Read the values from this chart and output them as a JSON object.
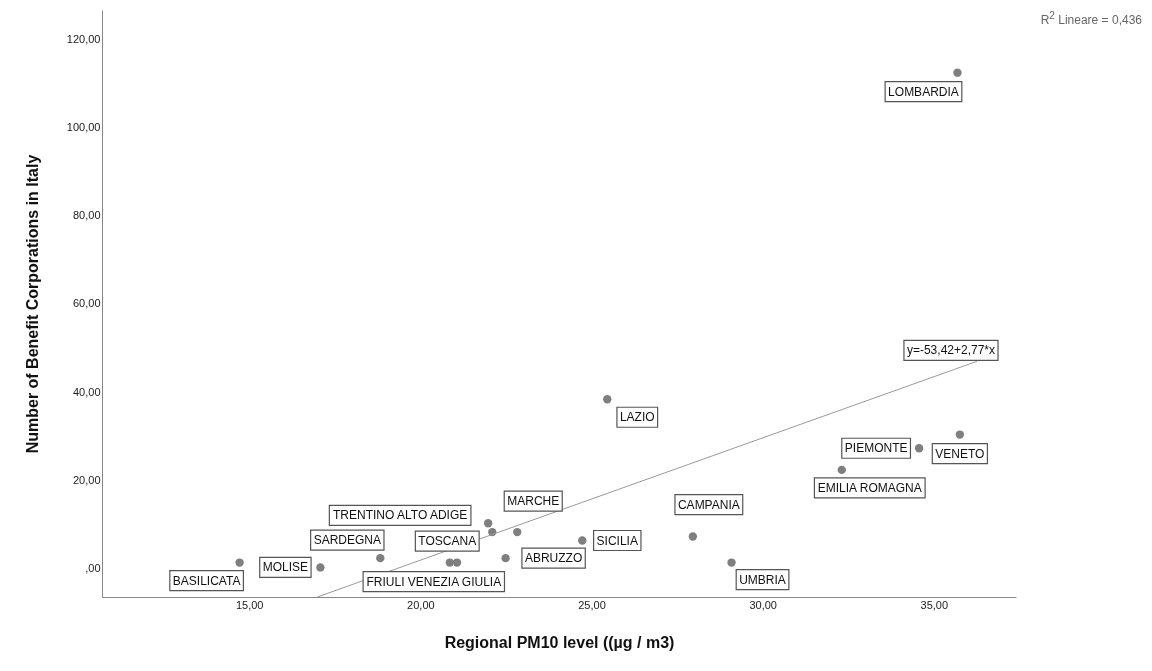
{
  "chart_data": {
    "type": "scatter",
    "xlabel": "Regional PM10 level ((µg / m3)",
    "ylabel": "Number of Benefit Corporations in Italy",
    "xlim": [
      10.7,
      37.4
    ],
    "ylim": [
      -6.4,
      126.6
    ],
    "xticks": [
      {
        "value": 15,
        "label": "15,00"
      },
      {
        "value": 20,
        "label": "20,00"
      },
      {
        "value": 25,
        "label": "25,00"
      },
      {
        "value": 30,
        "label": "30,00"
      },
      {
        "value": 35,
        "label": "35,00"
      }
    ],
    "yticks": [
      {
        "value": 0,
        "label": ",00"
      },
      {
        "value": 20,
        "label": "20,00"
      },
      {
        "value": 40,
        "label": "40,00"
      },
      {
        "value": 60,
        "label": "60,00"
      },
      {
        "value": 80,
        "label": "80,00"
      },
      {
        "value": 100,
        "label": "100,00"
      },
      {
        "value": 120,
        "label": "120,00"
      }
    ],
    "series": [
      {
        "color": "#7f7f7f",
        "marker": "circle",
        "x": [
          14.72,
          17.08,
          18.83,
          20.86,
          21.07,
          21.98,
          22.1,
          22.83,
          22.49,
          24.73,
          25.46,
          27.96,
          29.09,
          32.31,
          34.57,
          35.76,
          35.69
        ],
        "values": [
          1.4,
          0.3,
          2.4,
          1.4,
          1.4,
          10.3,
          8.3,
          8.3,
          2.4,
          6.4,
          38.4,
          7.3,
          1.4,
          22.4,
          27.3,
          30.4,
          112.4
        ]
      },
      {
        "type": "line",
        "color": "#999999",
        "line_style": "solid",
        "x": [
          16.99,
          36.26
        ],
        "values": [
          -6.4,
          47.0
        ]
      }
    ],
    "annotations": [
      {
        "text": "BASILICATA",
        "x": 14.72,
        "y": 1.4
      },
      {
        "text": "MOLISE",
        "x": 17.08,
        "y": 0.3
      },
      {
        "text": "SARDEGNA",
        "x": 18.83,
        "y": 2.4
      },
      {
        "text": "FRIULI VENEZIA GIULIA",
        "x": 20.86,
        "y": 1.4
      },
      {
        "text": "TRENTINO ALTO ADIGE",
        "x": 21.98,
        "y": 10.3
      },
      {
        "text": "TOSCANA",
        "x": 22.1,
        "y": 8.3
      },
      {
        "text": "MARCHE",
        "x": 22.83,
        "y": 8.3
      },
      {
        "text": "ABRUZZO",
        "x": 22.49,
        "y": 2.4
      },
      {
        "text": "SICILIA",
        "x": 24.73,
        "y": 6.4
      },
      {
        "text": "LAZIO",
        "x": 25.46,
        "y": 38.4
      },
      {
        "text": "CAMPANIA",
        "x": 27.96,
        "y": 7.3
      },
      {
        "text": "UMBRIA",
        "x": 29.09,
        "y": 1.4
      },
      {
        "text": "EMILIA ROMAGNA",
        "x": 32.31,
        "y": 22.4
      },
      {
        "text": "PIEMONTE",
        "x": 34.57,
        "y": 27.3
      },
      {
        "text": "VENETO",
        "x": 35.76,
        "y": 30.4
      },
      {
        "text": "LOMBARDIA",
        "x": 35.69,
        "y": 112.4
      },
      {
        "text": "y=-53,42+2,77*x",
        "x": 36.26,
        "y": 47.0
      },
      "R$^{2}$ Lineare = 0,436"
    ]
  }
}
